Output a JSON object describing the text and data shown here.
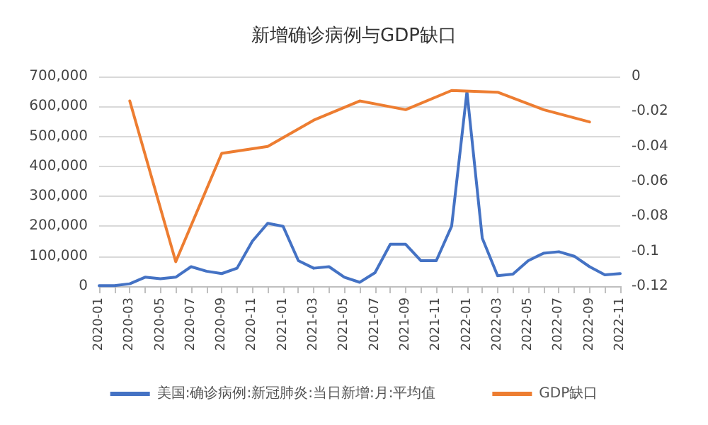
{
  "chart_data": {
    "type": "line",
    "title": "新增确诊病例与GDP缺口",
    "categories": [
      "2020-01",
      null,
      "2020-03",
      null,
      "2020-05",
      null,
      "2020-07",
      null,
      "2020-09",
      null,
      "2020-11",
      null,
      "2021-01",
      null,
      "2021-03",
      null,
      "2021-05",
      null,
      "2021-07",
      null,
      "2021-09",
      null,
      "2021-11",
      null,
      "2022-01",
      null,
      "2022-03",
      null,
      "2022-05",
      null,
      "2022-07",
      null,
      "2022-09",
      null,
      "2022-11"
    ],
    "series": [
      {
        "name": "美国:确诊病例:新冠肺炎:当日新增:月:平均值",
        "color": "#4472c4",
        "values": [
          2000,
          2000,
          8000,
          30000,
          25000,
          30000,
          65000,
          50000,
          42000,
          60000,
          150000,
          210000,
          200000,
          85000,
          60000,
          65000,
          30000,
          13000,
          45000,
          140000,
          140000,
          85000,
          85000,
          200000,
          650000,
          160000,
          35000,
          40000,
          85000,
          110000,
          115000,
          100000,
          65000,
          38000,
          42000
        ]
      },
      {
        "name": "GDP缺口",
        "color": "#ed7d31",
        "axis": "y2",
        "values": [
          null,
          null,
          -0.014,
          null,
          null,
          -0.106,
          null,
          null,
          -0.044,
          null,
          null,
          -0.04,
          null,
          null,
          -0.025,
          null,
          null,
          -0.014,
          null,
          null,
          -0.019,
          null,
          null,
          -0.008,
          null,
          null,
          -0.009,
          null,
          null,
          -0.019,
          null,
          null,
          -0.026,
          null,
          null
        ]
      }
    ],
    "ylim": [
      0,
      700000
    ],
    "yticks": [
      0,
      {
        "value": 100000,
        "label": "100,000"
      },
      {
        "value": 200000,
        "label": "200,000"
      },
      {
        "value": 300000,
        "label": "300,000"
      },
      {
        "value": 400000,
        "label": "400,000"
      },
      {
        "value": 500000,
        "label": "500,000"
      },
      {
        "value": 600000,
        "label": "600,000"
      },
      {
        "value": 700000,
        "label": "700,000"
      }
    ],
    "y2lim": [
      -0.12,
      0
    ],
    "y2ticks": [
      0,
      -0.02,
      -0.04,
      -0.06,
      -0.08,
      -0.1,
      -0.12
    ],
    "grid": "y",
    "legend": "bottom",
    "marker": "none",
    "line_style": "solid"
  }
}
